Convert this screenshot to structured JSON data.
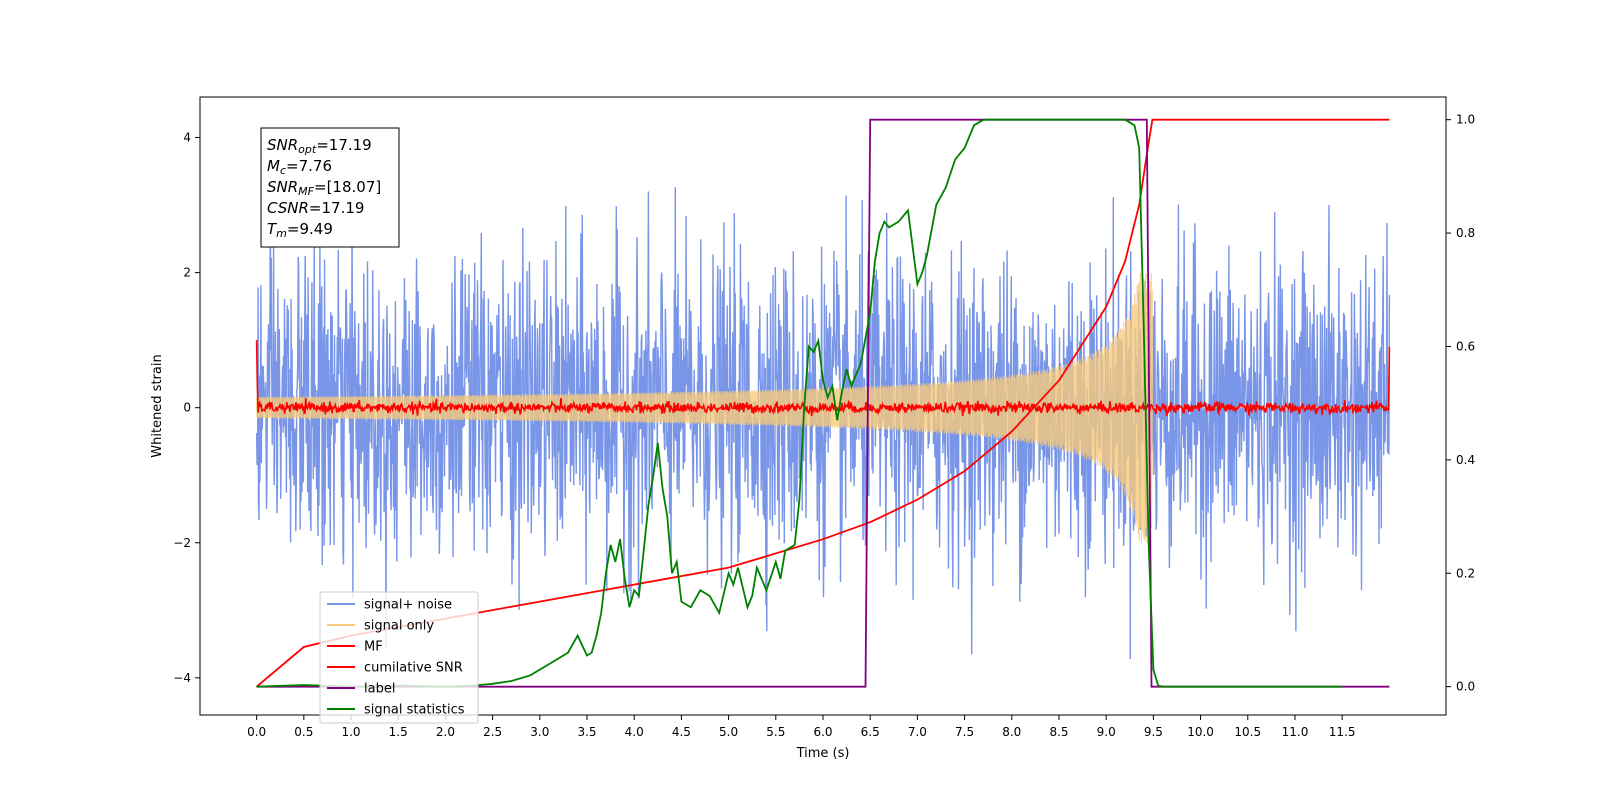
{
  "chart_data": {
    "type": "line",
    "xlabel": "Time (s)",
    "ylabel": "Whitened strain",
    "xlim": [
      -0.6,
      12.6
    ],
    "ylim": [
      -4.55,
      4.6
    ],
    "y2lim": [
      -0.05,
      1.04
    ],
    "x_ticks": [
      "0.0",
      "0.5",
      "1.0",
      "1.5",
      "2.0",
      "2.5",
      "3.0",
      "3.5",
      "4.0",
      "4.5",
      "5.0",
      "5.5",
      "6.0",
      "6.5",
      "7.0",
      "7.5",
      "8.0",
      "8.5",
      "9.0",
      "9.5",
      "10.0",
      "10.5",
      "11.0",
      "11.5"
    ],
    "y_ticks": [
      "4",
      "2",
      "0",
      "−2",
      "−4"
    ],
    "y2_ticks": [
      "1.0",
      "0.8",
      "0.6",
      "0.4",
      "0.2",
      "0.0"
    ],
    "legend_position": "lower-left",
    "annotation_box": [
      {
        "sym": "SNR",
        "sub": "opt",
        "rest": "=17.19"
      },
      {
        "sym": "M",
        "sub": "c",
        "rest": "=7.76"
      },
      {
        "sym": "SNR",
        "sub": "MF",
        "rest": "=[18.07]"
      },
      {
        "sym": "CSNR",
        "sub": "",
        "rest": "=17.19"
      },
      {
        "sym": "T",
        "sub": "m",
        "rest": "=9.49"
      }
    ],
    "series": [
      {
        "name": "signal+ noise",
        "axis": "left",
        "color": "#7895e8",
        "style": "dense noise, std ≈ 1.1 around 0, spanning about ±4.1"
      },
      {
        "name": "signal only",
        "axis": "left",
        "color": "#f7c97a",
        "style": "chirp with envelope growing from ~0.05 at 0 s to ~2.0 at 9.49 s, then 0"
      },
      {
        "name": "MF",
        "axis": "left",
        "color": "#ff0000",
        "style": "small noise around 0 (std ≈ 0.04) with spikes ~1.0 at both ends"
      },
      {
        "name": "cumilative SNR",
        "axis": "right",
        "color": "#ff0000",
        "x": [
          0.0,
          0.5,
          1.0,
          2.0,
          3.0,
          4.0,
          5.0,
          6.0,
          6.5,
          7.0,
          7.5,
          8.0,
          8.5,
          9.0,
          9.2,
          9.35,
          9.45,
          9.49,
          9.5,
          12.0
        ],
        "values": [
          0.0,
          0.07,
          0.09,
          0.12,
          0.15,
          0.18,
          0.21,
          0.26,
          0.29,
          0.33,
          0.38,
          0.45,
          0.54,
          0.67,
          0.75,
          0.85,
          0.96,
          1.0,
          1.0,
          1.0
        ]
      },
      {
        "name": "label",
        "axis": "right",
        "color": "#800080",
        "x": [
          0.0,
          6.45,
          6.5,
          9.43,
          9.48,
          12.0
        ],
        "values": [
          0.0,
          0.0,
          1.0,
          1.0,
          0.0,
          0.0
        ]
      },
      {
        "name": "signal statistics",
        "axis": "right",
        "color": "#008000",
        "x": [
          0.0,
          0.5,
          1.0,
          1.5,
          2.0,
          2.3,
          2.5,
          2.7,
          2.9,
          3.0,
          3.1,
          3.2,
          3.3,
          3.4,
          3.5,
          3.55,
          3.6,
          3.65,
          3.7,
          3.75,
          3.8,
          3.85,
          3.9,
          3.95,
          4.0,
          4.05,
          4.1,
          4.15,
          4.2,
          4.25,
          4.3,
          4.35,
          4.4,
          4.45,
          4.5,
          4.6,
          4.7,
          4.8,
          4.9,
          5.0,
          5.05,
          5.1,
          5.2,
          5.25,
          5.3,
          5.4,
          5.5,
          5.55,
          5.6,
          5.7,
          5.75,
          5.8,
          5.85,
          5.9,
          5.95,
          6.0,
          6.05,
          6.1,
          6.15,
          6.2,
          6.25,
          6.3,
          6.35,
          6.4,
          6.5,
          6.55,
          6.6,
          6.65,
          6.7,
          6.8,
          6.9,
          7.0,
          7.05,
          7.1,
          7.2,
          7.3,
          7.4,
          7.5,
          7.6,
          7.7,
          7.8,
          8.0,
          8.5,
          9.0,
          9.2,
          9.3,
          9.35,
          9.4,
          9.45,
          9.5,
          9.55,
          9.6,
          9.7,
          10.0,
          11.0,
          11.5
        ],
        "values": [
          0.0,
          0.003,
          0.0,
          0.002,
          0.0,
          0.002,
          0.005,
          0.01,
          0.02,
          0.03,
          0.04,
          0.05,
          0.06,
          0.09,
          0.055,
          0.06,
          0.09,
          0.13,
          0.2,
          0.25,
          0.22,
          0.26,
          0.19,
          0.14,
          0.17,
          0.16,
          0.24,
          0.32,
          0.37,
          0.43,
          0.35,
          0.3,
          0.2,
          0.22,
          0.15,
          0.14,
          0.17,
          0.16,
          0.13,
          0.2,
          0.18,
          0.21,
          0.14,
          0.16,
          0.21,
          0.17,
          0.22,
          0.19,
          0.24,
          0.25,
          0.33,
          0.49,
          0.6,
          0.59,
          0.61,
          0.54,
          0.51,
          0.53,
          0.47,
          0.52,
          0.56,
          0.53,
          0.55,
          0.57,
          0.66,
          0.75,
          0.8,
          0.82,
          0.81,
          0.82,
          0.84,
          0.71,
          0.73,
          0.76,
          0.85,
          0.88,
          0.93,
          0.95,
          0.99,
          1.0,
          1.0,
          1.0,
          1.0,
          1.0,
          1.0,
          0.99,
          0.95,
          0.62,
          0.25,
          0.03,
          0.002,
          0.0,
          0.0,
          0.0,
          0.0,
          0.0
        ]
      }
    ]
  }
}
